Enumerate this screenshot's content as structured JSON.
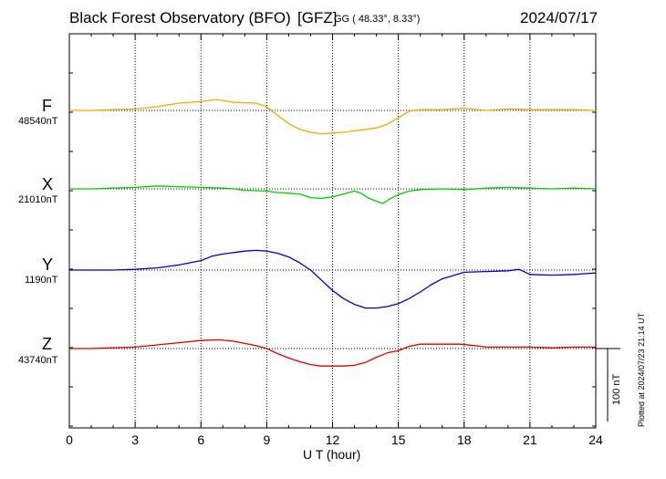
{
  "header": {
    "title": "Black Forest Observatory (BFO)",
    "code": "[GFZ]",
    "geo": "GG ( 48.33°,   8.33°)",
    "date": "2024/07/17"
  },
  "footer": {
    "xlabel": "U T (hour)",
    "plotted": "Plotted at 2024/07/23 21:14 UT"
  },
  "scale": {
    "label": "100 nT",
    "nT": 100
  },
  "colors": {
    "F": "#f5a800",
    "X": "#00cc00",
    "Y": "#0000cc",
    "Z": "#e00000"
  },
  "chart_data": {
    "type": "line",
    "x_ticks": [
      "0",
      "3",
      "6",
      "9",
      "12",
      "15",
      "18",
      "21",
      "24"
    ],
    "xlim": [
      0,
      24
    ],
    "xlabel": "U T (hour)",
    "grid": true,
    "series": [
      {
        "name": "F",
        "baseline_label": "48540nT",
        "baseline": 48540,
        "color": "#f5a800",
        "x": [
          0,
          1,
          2,
          3,
          4,
          5,
          6,
          6.7,
          7.5,
          8.5,
          9,
          9.5,
          10,
          10.5,
          11,
          11.5,
          12,
          12.5,
          13,
          13.5,
          14,
          14.5,
          15,
          15.5,
          16,
          17,
          18,
          19,
          20,
          21,
          22,
          23,
          24
        ],
        "y": [
          48540,
          48540,
          48541,
          48542,
          48545,
          48550,
          48552,
          48555,
          48551,
          48550,
          48545,
          48533,
          48522,
          48514,
          48510,
          48508,
          48509,
          48510,
          48512,
          48514,
          48516,
          48521,
          48530,
          48539,
          48541,
          48541,
          48543,
          48540,
          48542,
          48541,
          48541,
          48541,
          48540
        ]
      },
      {
        "name": "X",
        "baseline_label": "21010nT",
        "baseline": 21010,
        "color": "#00cc00",
        "x": [
          0,
          1,
          2,
          3,
          4,
          5,
          6,
          7,
          7.5,
          8,
          9,
          9.5,
          10,
          10.5,
          11,
          11.5,
          12,
          12.5,
          13,
          13.3,
          13.6,
          14,
          14.3,
          14.6,
          15,
          15.5,
          16,
          17,
          18,
          19,
          20,
          21,
          22,
          23,
          24
        ],
        "y": [
          21010,
          21010,
          21011,
          21012,
          21014,
          21013,
          21012,
          21011,
          21010,
          21008,
          21007,
          21005,
          21004,
          21003,
          20998,
          20997,
          20999,
          21003,
          21007,
          21004,
          20998,
          20993,
          20990,
          20996,
          21002,
          21007,
          21009,
          21010,
          21009,
          21011,
          21012,
          21011,
          21010,
          21011,
          21010
        ]
      },
      {
        "name": "Y",
        "baseline_label": "1190nT",
        "baseline": 1190,
        "color": "#0000cc",
        "x": [
          0,
          1,
          2,
          3,
          4,
          5,
          5.5,
          6,
          6.5,
          7,
          7.5,
          8,
          8.5,
          9,
          9.5,
          10,
          10.5,
          11,
          11.5,
          12,
          12.5,
          13,
          13.5,
          14,
          14.5,
          15,
          15.5,
          16,
          16.5,
          17,
          18,
          19,
          20,
          20.5,
          21,
          22,
          23,
          24
        ],
        "y": [
          1190,
          1190,
          1190,
          1191,
          1193,
          1197,
          1200,
          1203,
          1209,
          1212,
          1214,
          1216,
          1217,
          1216,
          1213,
          1208,
          1200,
          1190,
          1176,
          1162,
          1151,
          1143,
          1138,
          1138,
          1140,
          1144,
          1151,
          1160,
          1170,
          1178,
          1187,
          1188,
          1189,
          1191,
          1184,
          1183,
          1184,
          1186
        ]
      },
      {
        "name": "Z",
        "baseline_label": "43740nT",
        "baseline": 43740,
        "color": "#e00000",
        "x": [
          0,
          1,
          2,
          3,
          4,
          5,
          6,
          6.8,
          7.5,
          8,
          8.5,
          9,
          9.5,
          10,
          10.5,
          11,
          11.5,
          12,
          12.5,
          13,
          13.5,
          14,
          14.5,
          15,
          15.5,
          16,
          17,
          17.8,
          18.5,
          19,
          20,
          21,
          22,
          23,
          24
        ],
        "y": [
          43740,
          43740,
          43741,
          43742,
          43745,
          43748,
          43751,
          43752,
          43750,
          43747,
          43744,
          43740,
          43733,
          43727,
          43722,
          43718,
          43716,
          43716,
          43716,
          43717,
          43721,
          43728,
          43734,
          43737,
          43743,
          43746,
          43746,
          43746,
          43744,
          43742,
          43742,
          43742,
          43741,
          43742,
          43742
        ]
      }
    ]
  }
}
